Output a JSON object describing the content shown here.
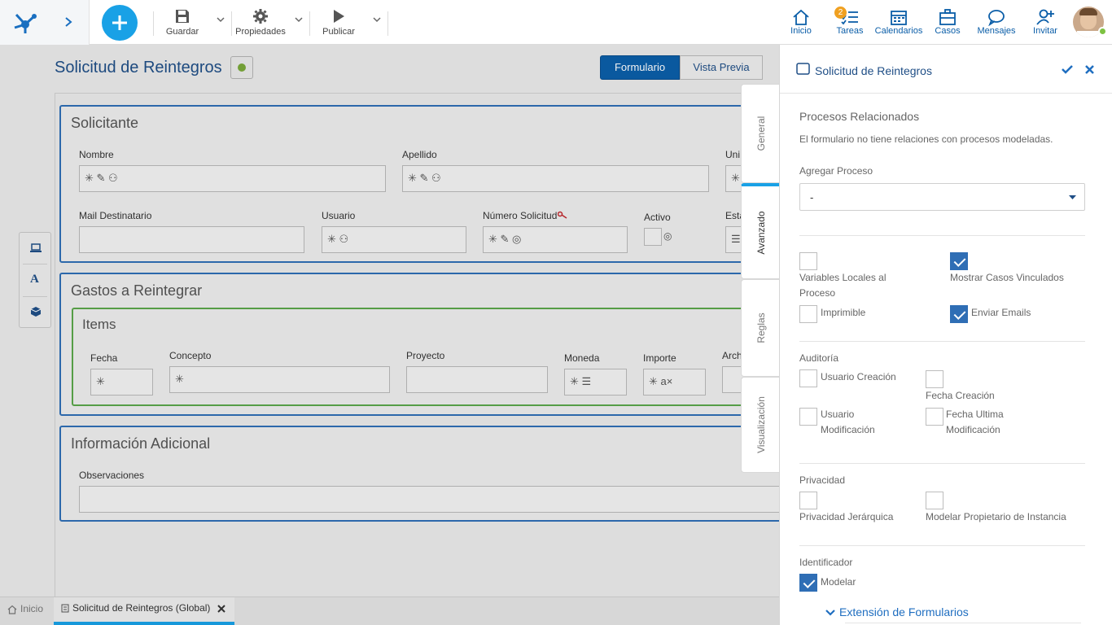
{
  "toolbar": {
    "save_label": "Guardar",
    "properties_label": "Propiedades",
    "publish_label": "Publicar"
  },
  "nav": {
    "items": [
      {
        "label": "Inicio",
        "icon": "home-icon"
      },
      {
        "label": "Tareas",
        "icon": "tasks-icon",
        "badge": "2"
      },
      {
        "label": "Calendarios",
        "icon": "calendar-icon"
      },
      {
        "label": "Casos",
        "icon": "briefcase-icon"
      },
      {
        "label": "Mensajes",
        "icon": "chat-icon"
      },
      {
        "label": "Invitar",
        "icon": "add-user-icon"
      }
    ]
  },
  "form": {
    "title": "Solicitud de Reintegros",
    "view_tabs": [
      "Formulario",
      "Vista Previa"
    ],
    "sections": {
      "solicitante": {
        "title": "Solicitante",
        "fields": {
          "nombre": "Nombre",
          "apellido": "Apellido",
          "unidad": "Uni",
          "mail": "Mail Destinatario",
          "usuario": "Usuario",
          "numero": "Número Solicitud",
          "activo": "Activo",
          "estado": "Esta"
        }
      },
      "gastos": {
        "title": "Gastos a Reintegrar",
        "items": {
          "title": "Items",
          "cols": {
            "fecha": "Fecha",
            "concepto": "Concepto",
            "proyecto": "Proyecto",
            "moneda": "Moneda",
            "importe": "Importe",
            "archivo": "Arch"
          }
        }
      },
      "info": {
        "title": "Información Adicional",
        "fields": {
          "observaciones": "Observaciones"
        }
      }
    }
  },
  "bottom": {
    "home_label": "Inicio",
    "tab_label": "Solicitud de Reintegros (Global)"
  },
  "vertical_tabs": [
    "General",
    "Avanzado",
    "Reglas",
    "Visualización"
  ],
  "panel": {
    "title": "Solicitud de Reintegros",
    "related_heading": "Procesos Relacionados",
    "related_note": "El formulario no tiene relaciones con procesos modeladas.",
    "add_process_label": "Agregar Proceso",
    "add_process_value": "-",
    "options": {
      "local_vars": "Variables Locales al Proceso",
      "show_linked": "Mostrar Casos Vinculados",
      "printable": "Imprimible",
      "send_emails": "Enviar Emails"
    },
    "audit": {
      "heading": "Auditoría",
      "user_created": "Usuario Creación",
      "date_created": "Fecha Creación",
      "user_modified": "Usuario Modificación",
      "date_modified": "Fecha Ultima Modificación"
    },
    "privacy": {
      "heading": "Privacidad",
      "hierarchical": "Privacidad Jerárquica",
      "owner": "Modelar Propietario de Instancia"
    },
    "identifier": {
      "heading": "Identificador",
      "model": "Modelar"
    },
    "extension_label": "Extensión de Formularios"
  }
}
